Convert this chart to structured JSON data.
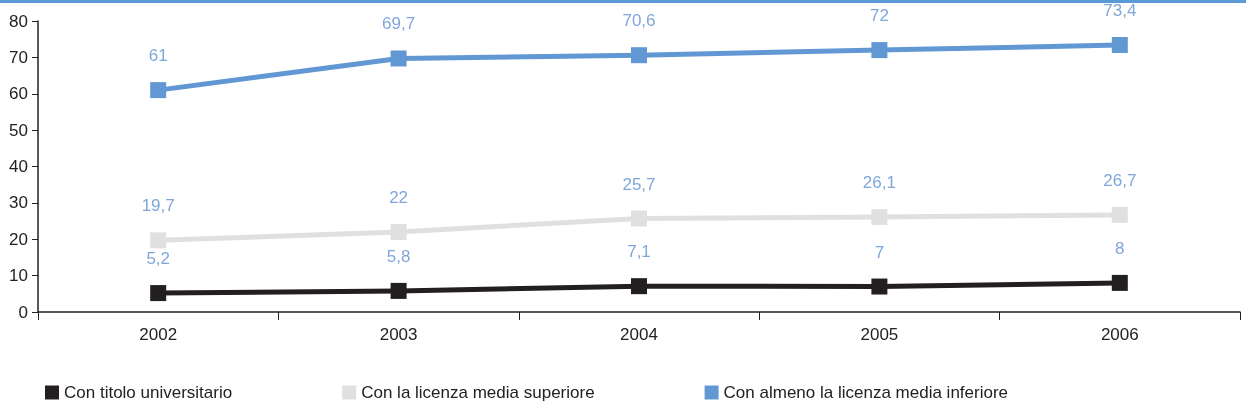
{
  "chart_data": {
    "type": "line",
    "categories": [
      "2002",
      "2003",
      "2004",
      "2005",
      "2006"
    ],
    "series": [
      {
        "name": "Con titolo universitario",
        "color": "#231f20",
        "values": [
          5.2,
          5.8,
          7.1,
          7,
          8
        ],
        "value_labels": [
          "5,2",
          "5,8",
          "7,1",
          "7",
          "8"
        ]
      },
      {
        "name": "Con la licenza media superiore",
        "color": "#e0e0e0",
        "values": [
          19.7,
          22,
          25.7,
          26.1,
          26.7
        ],
        "value_labels": [
          "19,7",
          "22",
          "25,7",
          "26,1",
          "26,7"
        ]
      },
      {
        "name": "Con almeno la licenza media inferiore",
        "color": "#6198d4",
        "values": [
          61,
          69.7,
          70.6,
          72,
          73.4
        ],
        "value_labels": [
          "61",
          "69,7",
          "70,6",
          "72",
          "73,4"
        ]
      }
    ],
    "ylim": [
      0,
      80
    ],
    "yticks": [
      0,
      10,
      20,
      30,
      40,
      50,
      60,
      70,
      80
    ],
    "grid": false,
    "legend": "bottom",
    "marker": "square",
    "line_style": "solid"
  }
}
